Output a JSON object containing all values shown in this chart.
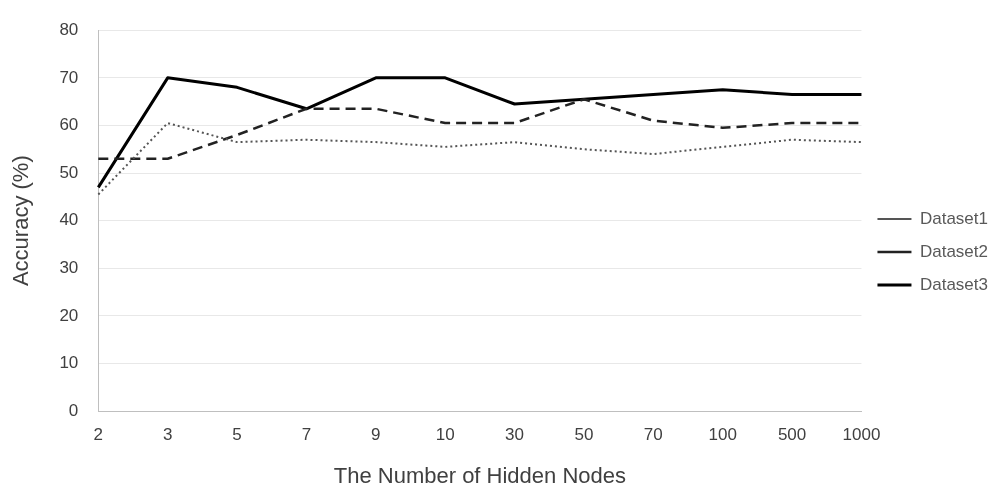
{
  "chart_data": {
    "type": "line",
    "xlabel": "The Number of Hidden Nodes",
    "ylabel": "Accuracy (%)",
    "categories": [
      "2",
      "3",
      "5",
      "7",
      "9",
      "10",
      "30",
      "50",
      "70",
      "100",
      "500",
      "1000"
    ],
    "ylim": [
      0,
      80
    ],
    "yticks": [
      0,
      10,
      20,
      30,
      40,
      50,
      60,
      70,
      80
    ],
    "grid": "y",
    "legend": "right",
    "marker": "none",
    "series": [
      {
        "name": "Dataset1",
        "color": "#555555",
        "line_style": "dotted",
        "values": [
          45.5,
          60.5,
          56.5,
          57,
          56.5,
          55.5,
          56.5,
          55,
          54,
          55.5,
          57,
          56.5
        ]
      },
      {
        "name": "Dataset2",
        "color": "#222222",
        "line_style": "dashed",
        "values": [
          53,
          53,
          58,
          63.5,
          63.5,
          60.5,
          60.5,
          65.5,
          61,
          59.5,
          60.5,
          60.5
        ]
      },
      {
        "name": "Dataset3",
        "color": "#000000",
        "line_style": "solid",
        "values": [
          47,
          70,
          68,
          63.5,
          70,
          70,
          64.5,
          65.5,
          66.5,
          67.5,
          66.5,
          66.5
        ]
      }
    ]
  }
}
